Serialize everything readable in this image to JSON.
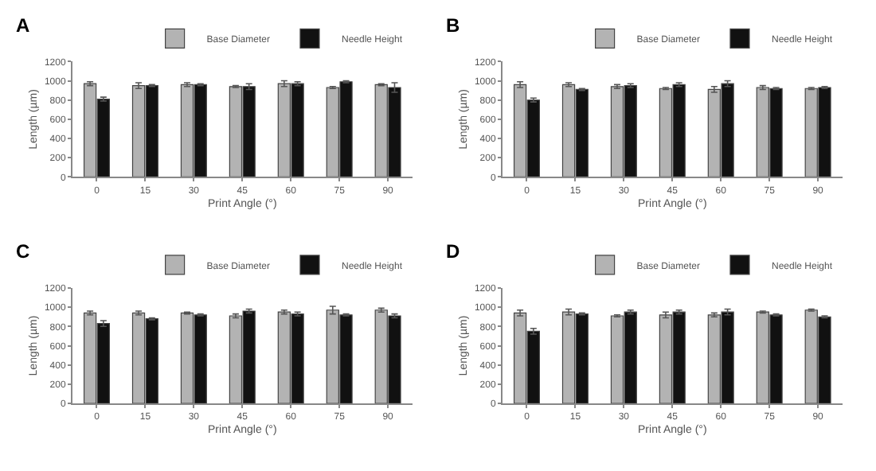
{
  "chart_data": [
    {
      "type": "bar",
      "title": "A",
      "xlabel": "Print Angle (°)",
      "ylabel": "Length (µm)",
      "categories": [
        "0",
        "15",
        "30",
        "45",
        "60",
        "75",
        "90"
      ],
      "ylim": [
        0,
        1200
      ],
      "yticks": [
        0,
        200,
        400,
        600,
        800,
        1000,
        1200
      ],
      "grid": false,
      "legend": "top right",
      "series": [
        {
          "name": "Base Diameter",
          "color": "#b3b3b3",
          "values": [
            970,
            950,
            960,
            940,
            970,
            930,
            960
          ],
          "errors": [
            20,
            30,
            20,
            10,
            30,
            10,
            10
          ]
        },
        {
          "name": "Needle Height",
          "color": "#111111",
          "values": [
            810,
            950,
            960,
            940,
            970,
            990,
            930
          ],
          "errors": [
            20,
            10,
            10,
            30,
            20,
            10,
            50
          ]
        }
      ]
    },
    {
      "type": "bar",
      "title": "B",
      "xlabel": "Print Angle (°)",
      "ylabel": "Length (µm)",
      "categories": [
        "0",
        "15",
        "30",
        "45",
        "60",
        "75",
        "90"
      ],
      "ylim": [
        0,
        1200
      ],
      "yticks": [
        0,
        200,
        400,
        600,
        800,
        1000,
        1200
      ],
      "grid": false,
      "legend": "top right",
      "series": [
        {
          "name": "Base Diameter",
          "color": "#b3b3b3",
          "values": [
            960,
            960,
            940,
            920,
            910,
            930,
            920
          ],
          "errors": [
            30,
            20,
            20,
            10,
            30,
            20,
            10
          ]
        },
        {
          "name": "Needle Height",
          "color": "#111111",
          "values": [
            800,
            910,
            950,
            960,
            970,
            920,
            930
          ],
          "errors": [
            20,
            10,
            20,
            20,
            30,
            10,
            10
          ]
        }
      ]
    },
    {
      "type": "bar",
      "title": "C",
      "xlabel": "Print Angle (°)",
      "ylabel": "Length (µm)",
      "categories": [
        "0",
        "15",
        "30",
        "45",
        "60",
        "75",
        "90"
      ],
      "ylim": [
        0,
        1200
      ],
      "yticks": [
        0,
        200,
        400,
        600,
        800,
        1000,
        1200
      ],
      "grid": false,
      "legend": "top right",
      "series": [
        {
          "name": "Base Diameter",
          "color": "#b3b3b3",
          "values": [
            940,
            940,
            940,
            910,
            950,
            970,
            970
          ],
          "errors": [
            20,
            20,
            10,
            20,
            20,
            40,
            20
          ]
        },
        {
          "name": "Needle Height",
          "color": "#111111",
          "values": [
            830,
            880,
            920,
            960,
            930,
            920,
            910
          ],
          "errors": [
            30,
            10,
            10,
            20,
            20,
            10,
            20
          ]
        }
      ]
    },
    {
      "type": "bar",
      "title": "D",
      "xlabel": "Print Angle (°)",
      "ylabel": "Length (µm)",
      "categories": [
        "0",
        "15",
        "30",
        "45",
        "60",
        "75",
        "90"
      ],
      "ylim": [
        0,
        1200
      ],
      "yticks": [
        0,
        200,
        400,
        600,
        800,
        1000,
        1200
      ],
      "grid": false,
      "legend": "top right",
      "series": [
        {
          "name": "Base Diameter",
          "color": "#b3b3b3",
          "values": [
            940,
            950,
            910,
            920,
            920,
            950,
            970
          ],
          "errors": [
            30,
            30,
            10,
            30,
            20,
            10,
            10
          ]
        },
        {
          "name": "Needle Height",
          "color": "#111111",
          "values": [
            750,
            930,
            950,
            950,
            950,
            920,
            900
          ],
          "errors": [
            30,
            10,
            20,
            20,
            30,
            10,
            10
          ]
        }
      ]
    }
  ]
}
